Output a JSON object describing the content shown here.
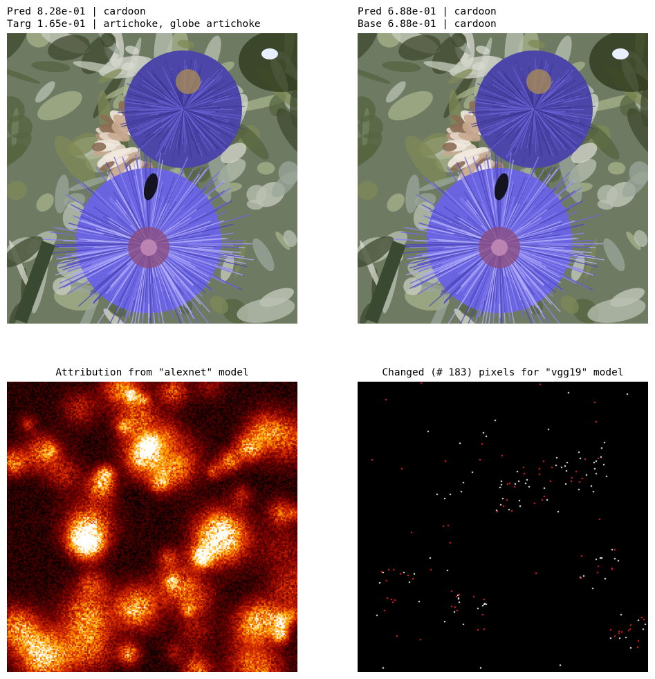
{
  "panels": [
    {
      "caption_line1": "Pred 8.28e-01 | cardoon",
      "caption_line2": "Targ 1.65e-01 | artichoke, globe artichoke",
      "image": "artichoke-flower-photo"
    },
    {
      "caption_line1": "Pred 6.88e-01 | cardoon",
      "caption_line2": "Base 6.88e-01 | cardoon",
      "image": "artichoke-flower-photo"
    },
    {
      "caption": "Attribution from \"alexnet\" model",
      "image": "attribution-heatmap",
      "colormap": [
        "#000000",
        "#7a0000",
        "#e03000",
        "#ffb000",
        "#ffffff"
      ]
    },
    {
      "caption": "Changed (# 183) pixels for \"vgg19\" model",
      "image": "changed-pixels-map",
      "background": "#000000",
      "dot_colors": [
        "#ffffff",
        "#ff2020"
      ]
    }
  ]
}
